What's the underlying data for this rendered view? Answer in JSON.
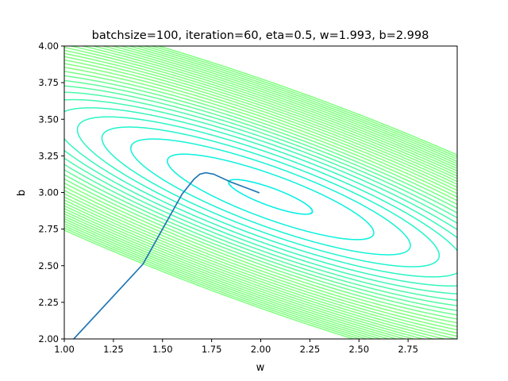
{
  "chart_data": {
    "type": "line",
    "title": "batchsize=100, iteration=60, eta=0.5, w=1.993, b=2.998",
    "xlabel": "w",
    "ylabel": "b",
    "xlim": [
      1.0,
      3.0
    ],
    "ylim": [
      2.0,
      4.0
    ],
    "xticks": [
      "1.00",
      "1.25",
      "1.50",
      "1.75",
      "2.00",
      "2.25",
      "2.50",
      "2.75"
    ],
    "xtick_values": [
      1.0,
      1.25,
      1.5,
      1.75,
      2.0,
      2.25,
      2.5,
      2.75
    ],
    "yticks": [
      "2.00",
      "2.25",
      "2.50",
      "2.75",
      "3.00",
      "3.25",
      "3.50",
      "3.75",
      "4.00"
    ],
    "ytick_values": [
      2.0,
      2.25,
      2.5,
      2.75,
      3.0,
      3.25,
      3.5,
      3.75,
      4.0
    ],
    "grid": false,
    "contour": {
      "center": {
        "w": 2.05,
        "b": 2.97
      },
      "levels": 30,
      "inner_color": "#00f0e6",
      "outer_color": "#80ff80"
    },
    "series": [
      {
        "name": "trajectory",
        "color": "#1f77b4",
        "w": [
          1.048,
          1.2,
          1.4,
          1.6,
          1.66,
          1.69,
          1.72,
          1.76,
          1.85,
          1.93,
          1.993
        ],
        "b": [
          2.0,
          2.22,
          2.51,
          2.99,
          3.09,
          3.125,
          3.135,
          3.125,
          3.07,
          3.03,
          2.998
        ]
      }
    ]
  }
}
